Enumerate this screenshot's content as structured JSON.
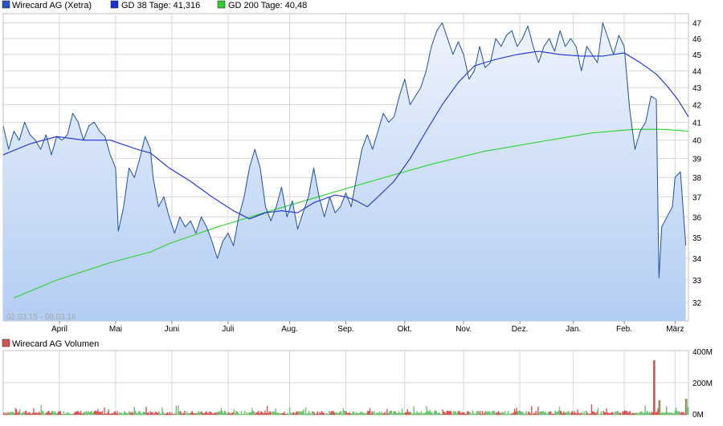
{
  "legend": {
    "price_label": "Wirecard AG (Xetra)",
    "gd38_label": "GD 38 Tage: 41,316",
    "gd200_label": "GD 200 Tage: 40,48",
    "volume_label": "Wirecard AG Volumen",
    "date_range": "02.03.15 - 08.03.16"
  },
  "colors": {
    "price_line": "#1f4fa0",
    "area_top": "#eef3fc",
    "area_bottom": "#b3cdf3",
    "gd38": "#1a2fd6",
    "gd200": "#27d22b",
    "grid": "#d6d6d6",
    "volume_up": "#69c26a",
    "volume_down": "#d65353",
    "legend_price": "#2a53c3",
    "legend_gd38": "#1a2fd6",
    "legend_gd200": "#33cc33",
    "legend_volume": "#d65353"
  },
  "chart_data": [
    {
      "type": "line",
      "x_axis": "trading days 02.03.15 - 08.03.16",
      "month_labels": [
        "April",
        "Mai",
        "Juni",
        "Juli",
        "Aug.",
        "Sep.",
        "Okt.",
        "Nov.",
        "Dez.",
        "Jan.",
        "Feb.",
        "März"
      ],
      "month_positions_days": [
        21,
        42,
        63,
        84,
        107,
        128,
        150,
        172,
        193,
        213,
        232,
        251
      ],
      "y_ticks": [
        32,
        33,
        34,
        35,
        36,
        37,
        38,
        39,
        40,
        41,
        42,
        43,
        44,
        45,
        46,
        47
      ],
      "ylim": [
        31.2,
        47.6
      ],
      "scale": "log",
      "series": [
        {
          "name": "Wirecard AG (Xetra)",
          "points": [
            [
              0,
              40.8
            ],
            [
              2,
              39.5
            ],
            [
              4,
              40.5
            ],
            [
              6,
              40.0
            ],
            [
              8,
              41.0
            ],
            [
              10,
              40.3
            ],
            [
              12,
              40.0
            ],
            [
              14,
              39.5
            ],
            [
              16,
              40.3
            ],
            [
              18,
              39.2
            ],
            [
              20,
              40.2
            ],
            [
              22,
              40.0
            ],
            [
              24,
              40.3
            ],
            [
              26,
              41.5
            ],
            [
              28,
              41.0
            ],
            [
              30,
              40.0
            ],
            [
              32,
              40.8
            ],
            [
              34,
              41.0
            ],
            [
              36,
              40.5
            ],
            [
              38,
              40.2
            ],
            [
              40,
              39.2
            ],
            [
              42,
              38.5
            ],
            [
              43,
              35.3
            ],
            [
              45,
              36.5
            ],
            [
              47,
              38.5
            ],
            [
              49,
              38.0
            ],
            [
              51,
              39.0
            ],
            [
              53,
              40.2
            ],
            [
              55,
              39.5
            ],
            [
              56,
              38.0
            ],
            [
              58,
              36.5
            ],
            [
              60,
              37.0
            ],
            [
              62,
              36.0
            ],
            [
              64,
              35.2
            ],
            [
              66,
              36.0
            ],
            [
              68,
              35.5
            ],
            [
              70,
              35.8
            ],
            [
              72,
              35.2
            ],
            [
              74,
              36.0
            ],
            [
              76,
              35.5
            ],
            [
              78,
              34.8
            ],
            [
              80,
              34.0
            ],
            [
              82,
              34.8
            ],
            [
              84,
              35.2
            ],
            [
              86,
              34.6
            ],
            [
              88,
              36.0
            ],
            [
              90,
              37.0
            ],
            [
              92,
              38.5
            ],
            [
              94,
              39.5
            ],
            [
              96,
              38.5
            ],
            [
              98,
              36.5
            ],
            [
              100,
              35.8
            ],
            [
              102,
              36.5
            ],
            [
              104,
              37.5
            ],
            [
              106,
              36.0
            ],
            [
              108,
              36.8
            ],
            [
              110,
              35.4
            ],
            [
              112,
              36.2
            ],
            [
              114,
              37.0
            ],
            [
              116,
              38.5
            ],
            [
              118,
              37.0
            ],
            [
              120,
              36.0
            ],
            [
              122,
              37.0
            ],
            [
              124,
              36.2
            ],
            [
              126,
              36.5
            ],
            [
              128,
              37.2
            ],
            [
              130,
              36.5
            ],
            [
              132,
              38.0
            ],
            [
              134,
              39.5
            ],
            [
              136,
              40.3
            ],
            [
              138,
              39.5
            ],
            [
              140,
              40.5
            ],
            [
              142,
              41.5
            ],
            [
              144,
              41.0
            ],
            [
              146,
              41.3
            ],
            [
              148,
              42.5
            ],
            [
              150,
              43.5
            ],
            [
              152,
              42.0
            ],
            [
              154,
              42.5
            ],
            [
              156,
              43.0
            ],
            [
              158,
              44.0
            ],
            [
              160,
              45.5
            ],
            [
              162,
              46.5
            ],
            [
              164,
              47.0
            ],
            [
              166,
              46.0
            ],
            [
              168,
              45.0
            ],
            [
              170,
              45.8
            ],
            [
              172,
              45.0
            ],
            [
              174,
              43.5
            ],
            [
              176,
              44.0
            ],
            [
              178,
              45.5
            ],
            [
              180,
              44.2
            ],
            [
              182,
              44.5
            ],
            [
              184,
              46.0
            ],
            [
              186,
              45.5
            ],
            [
              188,
              46.2
            ],
            [
              190,
              46.5
            ],
            [
              192,
              45.5
            ],
            [
              194,
              46.0
            ],
            [
              196,
              46.8
            ],
            [
              198,
              45.5
            ],
            [
              200,
              44.5
            ],
            [
              202,
              45.5
            ],
            [
              204,
              46.0
            ],
            [
              206,
              45.2
            ],
            [
              208,
              46.5
            ],
            [
              210,
              45.5
            ],
            [
              212,
              46.0
            ],
            [
              214,
              45.5
            ],
            [
              216,
              44.0
            ],
            [
              218,
              45.5
            ],
            [
              220,
              45.0
            ],
            [
              222,
              44.5
            ],
            [
              224,
              47.0
            ],
            [
              226,
              46.0
            ],
            [
              228,
              45.0
            ],
            [
              230,
              46.2
            ],
            [
              232,
              45.5
            ],
            [
              234,
              41.8
            ],
            [
              236,
              39.5
            ],
            [
              238,
              40.5
            ],
            [
              240,
              41.0
            ],
            [
              242,
              42.5
            ],
            [
              244,
              42.3
            ],
            [
              245,
              33.1
            ],
            [
              246,
              35.5
            ],
            [
              248,
              36.0
            ],
            [
              250,
              36.5
            ],
            [
              251,
              38.0
            ],
            [
              253,
              38.3
            ],
            [
              255,
              34.6
            ]
          ]
        },
        {
          "name": "GD 38 Tage",
          "points": [
            [
              0,
              39.2
            ],
            [
              10,
              39.8
            ],
            [
              20,
              40.2
            ],
            [
              30,
              40.0
            ],
            [
              40,
              40.0
            ],
            [
              50,
              39.5
            ],
            [
              55,
              39.3
            ],
            [
              62,
              38.5
            ],
            [
              70,
              37.8
            ],
            [
              78,
              37.0
            ],
            [
              86,
              36.3
            ],
            [
              92,
              35.9
            ],
            [
              98,
              36.2
            ],
            [
              104,
              36.3
            ],
            [
              110,
              36.2
            ],
            [
              116,
              36.7
            ],
            [
              120,
              36.9
            ],
            [
              124,
              37.1
            ],
            [
              128,
              37.0
            ],
            [
              132,
              36.8
            ],
            [
              136,
              36.5
            ],
            [
              140,
              37.0
            ],
            [
              146,
              37.8
            ],
            [
              152,
              39.0
            ],
            [
              158,
              40.5
            ],
            [
              164,
              42.0
            ],
            [
              170,
              43.3
            ],
            [
              176,
              44.3
            ],
            [
              184,
              44.7
            ],
            [
              192,
              45.0
            ],
            [
              200,
              45.2
            ],
            [
              208,
              45.0
            ],
            [
              216,
              44.9
            ],
            [
              224,
              44.9
            ],
            [
              232,
              45.1
            ],
            [
              238,
              44.5
            ],
            [
              244,
              43.8
            ],
            [
              248,
              43.1
            ],
            [
              252,
              42.3
            ],
            [
              256,
              41.3
            ]
          ]
        },
        {
          "name": "GD 200 Tage",
          "points": [
            [
              4,
              32.2
            ],
            [
              20,
              33.0
            ],
            [
              40,
              33.8
            ],
            [
              55,
              34.3
            ],
            [
              62,
              34.7
            ],
            [
              80,
              35.5
            ],
            [
              100,
              36.3
            ],
            [
              120,
              37.1
            ],
            [
              140,
              37.9
            ],
            [
              160,
              38.7
            ],
            [
              180,
              39.4
            ],
            [
              200,
              39.9
            ],
            [
              220,
              40.4
            ],
            [
              236,
              40.6
            ],
            [
              246,
              40.6
            ],
            [
              256,
              40.5
            ]
          ]
        }
      ]
    },
    {
      "type": "bar",
      "title": "Wirecard AG Volumen",
      "y_ticks": [
        "0M",
        "200M",
        "400M"
      ],
      "ylim": [
        0,
        400
      ],
      "unit": "M",
      "peak": {
        "day": 243,
        "value": 340
      },
      "peak_2": {
        "day": 245,
        "value": 90
      },
      "peak_3": {
        "day": 255,
        "value": 100
      },
      "note": "daily volumes mostly 5-45M; bars green on up days, red on down days"
    }
  ]
}
